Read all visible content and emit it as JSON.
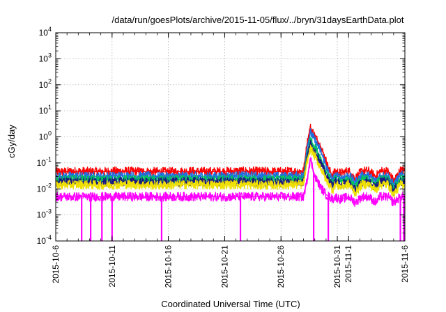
{
  "chart_data": {
    "type": "line",
    "title": "/data/run/goesPlots/archive/2015-11-05/flux/../bryn/31daysEarthData.plot",
    "xlabel": "Coordinated Universal Time (UTC)",
    "ylabel": "cGy/day",
    "y_scale": "log",
    "ylim": [
      0.0001,
      10000
    ],
    "x_range": [
      "2015-10-06",
      "2015-11-06"
    ],
    "x_tick_labels": [
      "2015-10-6",
      "2015-10-11",
      "2015-10-16",
      "2015-10-21",
      "2015-10-26",
      "2015-10-31",
      "2015-11-1",
      "2015-11-6"
    ],
    "x_tick_days": [
      0,
      5,
      10,
      15,
      20,
      25,
      26,
      31
    ],
    "y_ticks": [
      {
        "base": "10",
        "exp": "-4",
        "value": 0.0001
      },
      {
        "base": "10",
        "exp": "-3",
        "value": 0.001
      },
      {
        "base": "10",
        "exp": "-2",
        "value": 0.01
      },
      {
        "base": "10",
        "exp": "-1",
        "value": 0.1
      },
      {
        "base": "10",
        "exp": "0",
        "value": 1
      },
      {
        "base": "10",
        "exp": "1",
        "value": 10
      },
      {
        "base": "10",
        "exp": "2",
        "value": 100
      },
      {
        "base": "10",
        "exp": "3",
        "value": 1000
      },
      {
        "base": "10",
        "exp": "4",
        "value": 10000
      }
    ],
    "grid": true,
    "legend": "none",
    "series": [
      {
        "color": "#ff0000",
        "x_days": [
          0,
          2,
          4,
          6,
          8,
          10,
          12,
          14,
          16,
          18,
          20,
          22,
          22.3,
          22.6,
          23,
          23.5,
          24,
          24.3,
          24.6,
          24.8,
          25.3,
          26,
          26.6,
          27.2,
          27.8,
          28.4,
          28.8,
          29.5,
          30,
          30.6,
          31
        ],
        "values": [
          0.045,
          0.047,
          0.046,
          0.048,
          0.046,
          0.045,
          0.047,
          0.046,
          0.048,
          0.047,
          0.046,
          0.048,
          0.5,
          2.3,
          1.1,
          0.45,
          0.12,
          0.05,
          0.032,
          0.048,
          0.04,
          0.05,
          0.025,
          0.05,
          0.048,
          0.03,
          0.048,
          0.048,
          0.02,
          0.05,
          0.05
        ]
      },
      {
        "color": "#1f6fe0",
        "x_days": [
          0,
          2,
          4,
          6,
          8,
          10,
          12,
          14,
          16,
          18,
          20,
          22,
          22.3,
          22.6,
          23,
          23.5,
          24,
          24.3,
          24.6,
          24.8,
          25.3,
          26,
          26.6,
          27.2,
          27.8,
          28.4,
          28.8,
          29.5,
          30,
          30.6,
          31
        ],
        "values": [
          0.03,
          0.031,
          0.03,
          0.032,
          0.031,
          0.03,
          0.031,
          0.03,
          0.032,
          0.031,
          0.03,
          0.032,
          0.35,
          1.5,
          0.75,
          0.3,
          0.08,
          0.034,
          0.022,
          0.032,
          0.027,
          0.033,
          0.018,
          0.033,
          0.032,
          0.02,
          0.032,
          0.032,
          0.014,
          0.033,
          0.033
        ]
      },
      {
        "color": "#00c060",
        "x_days": [
          0,
          2,
          4,
          6,
          8,
          10,
          12,
          14,
          16,
          18,
          20,
          22,
          22.3,
          22.6,
          23,
          23.5,
          24,
          24.3,
          24.6,
          24.8,
          25.3,
          26,
          26.6,
          27.2,
          27.8,
          28.4,
          28.8,
          29.5,
          30,
          30.6,
          31
        ],
        "values": [
          0.022,
          0.023,
          0.022,
          0.023,
          0.022,
          0.022,
          0.023,
          0.022,
          0.023,
          0.022,
          0.022,
          0.023,
          0.2,
          0.8,
          0.4,
          0.16,
          0.045,
          0.025,
          0.016,
          0.023,
          0.019,
          0.023,
          0.013,
          0.023,
          0.023,
          0.015,
          0.023,
          0.023,
          0.01,
          0.023,
          0.023
        ]
      },
      {
        "color": "#1a1a80",
        "x_days": [
          0,
          2,
          4,
          6,
          8,
          10,
          12,
          14,
          16,
          18,
          20,
          22,
          22.3,
          22.6,
          23,
          23.5,
          24,
          24.3,
          24.6,
          24.8,
          25.3,
          26,
          26.6,
          27.2,
          27.8,
          28.4,
          28.8,
          29.5,
          30,
          30.6,
          31
        ],
        "values": [
          0.018,
          0.019,
          0.018,
          0.019,
          0.018,
          0.018,
          0.019,
          0.018,
          0.019,
          0.018,
          0.018,
          0.019,
          0.15,
          0.55,
          0.28,
          0.11,
          0.032,
          0.02,
          0.012,
          0.019,
          0.015,
          0.019,
          0.009,
          0.019,
          0.019,
          0.011,
          0.019,
          0.019,
          0.008,
          0.019,
          0.019
        ]
      },
      {
        "color": "#f0e000",
        "x_days": [
          0,
          2,
          4,
          6,
          8,
          10,
          12,
          14,
          16,
          18,
          20,
          22,
          22.3,
          22.6,
          23,
          23.5,
          24,
          24.3,
          24.6,
          24.8,
          25.3,
          26,
          26.6,
          27.2,
          27.8,
          28.4,
          28.8,
          29.5,
          30,
          30.6,
          31
        ],
        "values": [
          0.014,
          0.015,
          0.014,
          0.015,
          0.014,
          0.014,
          0.015,
          0.014,
          0.015,
          0.014,
          0.014,
          0.015,
          0.1,
          0.35,
          0.18,
          0.07,
          0.022,
          0.015,
          0.009,
          0.015,
          0.012,
          0.015,
          0.007,
          0.015,
          0.015,
          0.009,
          0.015,
          0.015,
          0.006,
          0.015,
          0.015
        ]
      },
      {
        "color": "#ff00ff",
        "x_days": [
          0,
          2,
          4,
          6,
          8,
          10,
          12,
          14,
          16,
          18,
          20,
          22,
          22.3,
          22.6,
          23,
          23.5,
          24,
          24.3,
          24.6,
          24.8,
          25.3,
          26,
          26.6,
          27.2,
          27.8,
          28.4,
          28.8,
          29.5,
          30,
          30.6,
          31
        ],
        "values": [
          0.005,
          0.005,
          0.005,
          0.005,
          0.005,
          0.005,
          0.005,
          0.005,
          0.005,
          0.005,
          0.005,
          0.005,
          0.02,
          0.15,
          0.03,
          0.012,
          0.006,
          0.005,
          0.004,
          0.005,
          0.004,
          0.005,
          0.003,
          0.005,
          0.005,
          0.003,
          0.005,
          0.005,
          0.003,
          0.005,
          0.005
        ]
      }
    ],
    "dropouts_day": [
      2.3,
      3.1,
      4.1,
      5.0,
      9.4,
      16.4,
      22.9,
      24.2,
      30.6,
      30.9
    ]
  }
}
